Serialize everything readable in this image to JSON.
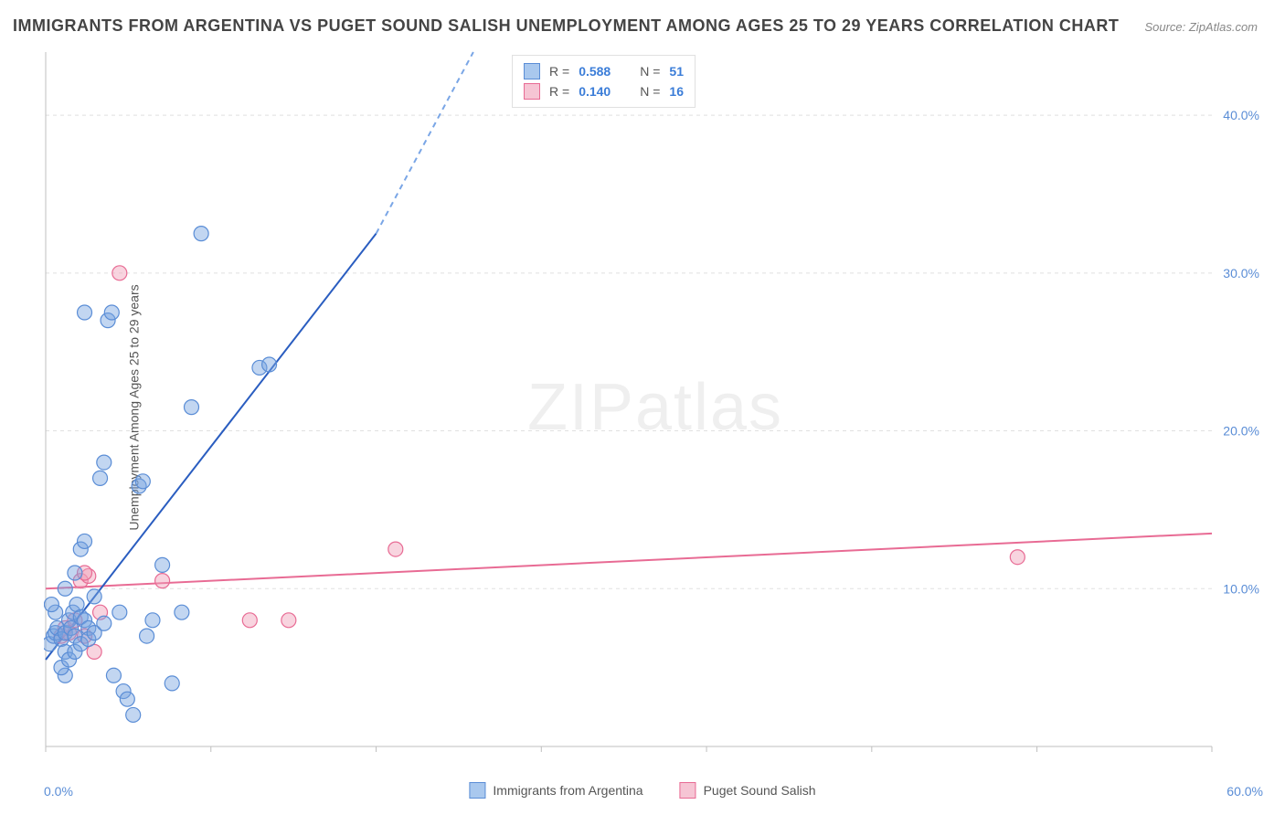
{
  "title": "IMMIGRANTS FROM ARGENTINA VS PUGET SOUND SALISH UNEMPLOYMENT AMONG AGES 25 TO 29 YEARS CORRELATION CHART",
  "source_label": "Source: ZipAtlas.com",
  "watermark": "ZIPatlas",
  "y_axis_label": "Unemployment Among Ages 25 to 29 years",
  "chart": {
    "type": "scatter",
    "xlim": [
      0,
      60
    ],
    "ylim": [
      0,
      44
    ],
    "x_tick_positions": [
      0,
      8.5,
      17,
      25.5,
      34,
      42.5,
      51,
      60
    ],
    "x_tick_labels_min": "0.0%",
    "x_tick_labels_max": "60.0%",
    "y_ticks": [
      10,
      20,
      30,
      40
    ],
    "y_tick_labels": [
      "10.0%",
      "20.0%",
      "30.0%",
      "40.0%"
    ],
    "grid_color": "#e0e0e0",
    "axis_color": "#bfbfbf",
    "background": "#ffffff",
    "tick_label_color": "#5a8dd6",
    "tick_label_fontsize": 14
  },
  "series": {
    "argentina": {
      "label": "Immigrants from Argentina",
      "swatch_fill": "#a9c8ee",
      "swatch_stroke": "#5a8dd6",
      "point_fill": "rgba(120,165,225,0.45)",
      "point_stroke": "#5a8dd6",
      "point_radius": 8,
      "line_color": "#2a5dc0",
      "line_width": 2,
      "dash_color": "#7aa6e6",
      "R": "0.588",
      "N": "51",
      "regression": {
        "x1": 0,
        "y1": 5.5,
        "x2": 17,
        "y2": 32.5,
        "dash_x2": 22,
        "dash_y2": 44
      },
      "points": [
        [
          0.2,
          6.5
        ],
        [
          0.4,
          7.0
        ],
        [
          0.5,
          7.2
        ],
        [
          0.6,
          7.5
        ],
        [
          0.8,
          6.8
        ],
        [
          1.0,
          7.2
        ],
        [
          1.0,
          6.0
        ],
        [
          1.2,
          8.0
        ],
        [
          1.3,
          7.5
        ],
        [
          1.4,
          8.5
        ],
        [
          1.5,
          7.0
        ],
        [
          1.5,
          11.0
        ],
        [
          1.6,
          9.0
        ],
        [
          1.8,
          8.2
        ],
        [
          1.8,
          12.5
        ],
        [
          2.0,
          8.0
        ],
        [
          2.0,
          13.0
        ],
        [
          2.0,
          27.5
        ],
        [
          2.2,
          7.5
        ],
        [
          2.5,
          9.5
        ],
        [
          2.8,
          17.0
        ],
        [
          3.0,
          18.0
        ],
        [
          3.2,
          27.0
        ],
        [
          3.4,
          27.5
        ],
        [
          3.5,
          4.5
        ],
        [
          3.8,
          8.5
        ],
        [
          4.0,
          3.5
        ],
        [
          4.2,
          3.0
        ],
        [
          4.5,
          2.0
        ],
        [
          4.8,
          16.5
        ],
        [
          5.0,
          16.8
        ],
        [
          5.2,
          7.0
        ],
        [
          5.5,
          8.0
        ],
        [
          6.0,
          11.5
        ],
        [
          6.5,
          4.0
        ],
        [
          7.0,
          8.5
        ],
        [
          7.5,
          21.5
        ],
        [
          8.0,
          32.5
        ],
        [
          1.0,
          4.5
        ],
        [
          0.8,
          5.0
        ],
        [
          1.2,
          5.5
        ],
        [
          1.5,
          6.0
        ],
        [
          1.8,
          6.5
        ],
        [
          2.2,
          6.8
        ],
        [
          2.5,
          7.2
        ],
        [
          3.0,
          7.8
        ],
        [
          0.5,
          8.5
        ],
        [
          0.3,
          9.0
        ],
        [
          1.0,
          10.0
        ],
        [
          11.0,
          24.0
        ],
        [
          11.5,
          24.2
        ]
      ]
    },
    "salish": {
      "label": "Puget Sound Salish",
      "swatch_fill": "#f6c5d4",
      "swatch_stroke": "#e86b94",
      "point_fill": "rgba(240,160,185,0.45)",
      "point_stroke": "#e86b94",
      "point_radius": 8,
      "line_color": "#e86b94",
      "line_width": 2,
      "R": "0.140",
      "N": "16",
      "regression": {
        "x1": 0,
        "y1": 10.0,
        "x2": 60,
        "y2": 13.5
      },
      "points": [
        [
          0.8,
          7.0
        ],
        [
          1.0,
          7.5
        ],
        [
          1.2,
          7.2
        ],
        [
          1.5,
          8.0
        ],
        [
          1.8,
          10.5
        ],
        [
          2.0,
          7.0
        ],
        [
          2.2,
          10.8
        ],
        [
          2.5,
          6.0
        ],
        [
          2.8,
          8.5
        ],
        [
          3.8,
          30.0
        ],
        [
          6.0,
          10.5
        ],
        [
          10.5,
          8.0
        ],
        [
          12.5,
          8.0
        ],
        [
          18.0,
          12.5
        ],
        [
          50.0,
          12.0
        ],
        [
          2.0,
          11.0
        ]
      ]
    }
  },
  "top_legend": {
    "r_label": "R =",
    "n_label": "N ="
  }
}
